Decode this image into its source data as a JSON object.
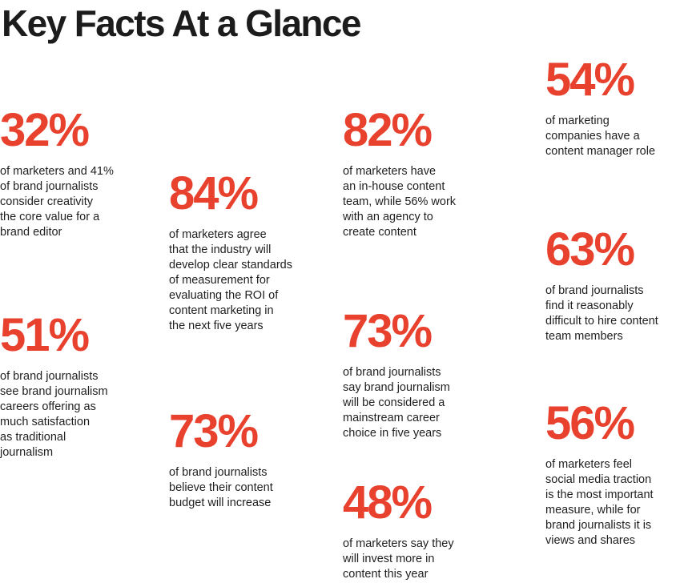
{
  "title": "Key Facts At a Glance",
  "colors": {
    "accent": "#e8412e",
    "text": "#1f1f1f"
  },
  "facts": [
    {
      "stat": "32%",
      "text": "of marketers and 41%\nof brand journalists\nconsider creativity\nthe core value for a\nbrand editor"
    },
    {
      "stat": "84%",
      "text": "of marketers agree\nthat the industry will\ndevelop clear standards\nof measurement for\nevaluating the ROI of\ncontent marketing in\nthe next five years"
    },
    {
      "stat": "51%",
      "text": "of brand journalists\nsee brand journalism\ncareers offering as\nmuch satisfaction\nas traditional\njournalism"
    },
    {
      "stat": "73%",
      "text": "of brand journalists\nbelieve their content\nbudget will increase"
    },
    {
      "stat": "82%",
      "text": "of marketers have\nan in-house content\nteam, while 56% work\nwith an agency to\ncreate content"
    },
    {
      "stat": "73%",
      "text": "of brand journalists\nsay brand journalism\nwill be considered a\nmainstream career\nchoice in five years"
    },
    {
      "stat": "48%",
      "text": "of marketers say they\nwill invest more in\ncontent this year"
    },
    {
      "stat": "54%",
      "text": "of marketing\ncompanies have a\ncontent manager role"
    },
    {
      "stat": "63%",
      "text": "of brand journalists\nfind it reasonably\ndifficult to hire content\nteam members"
    },
    {
      "stat": "56%",
      "text": "of marketers feel\nsocial media traction\nis the most important\nmeasure, while for\nbrand journalists it is\nviews and shares"
    }
  ]
}
